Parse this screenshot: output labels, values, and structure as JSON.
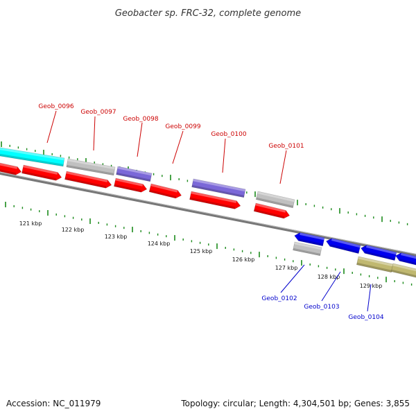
{
  "title": "Geobacter sp. FRC-32, complete genome",
  "footer": {
    "accession": "Accession: NC_011979",
    "summary": "Topology: circular; Length: 4,304,501 bp; Genes: 3,855"
  },
  "colors": {
    "cds_red": "#ff0000",
    "cds_blue": "#0000ee",
    "cyan": "#00ffff",
    "violet": "#7b68d8",
    "gray": "#c0c0c0",
    "khaki": "#c0b870",
    "tick_green": "#1a8a1a",
    "backbone": "#777777",
    "label_red": "#cc0000",
    "label_blue": "#0000cc"
  },
  "scale_labels": [
    "121 kbp",
    "122 kbp",
    "123 kbp",
    "124 kbp",
    "125 kbp",
    "126 kbp",
    "127 kbp",
    "128 kbp",
    "129 kbp"
  ],
  "gene_labels_top": [
    "Geob_0096",
    "Geob_0097",
    "Geob_0098",
    "Geob_0099",
    "Geob_0100",
    "Geob_0101"
  ],
  "gene_labels_bottom": [
    "Geob_0102",
    "Geob_0103",
    "Geob_0104"
  ]
}
